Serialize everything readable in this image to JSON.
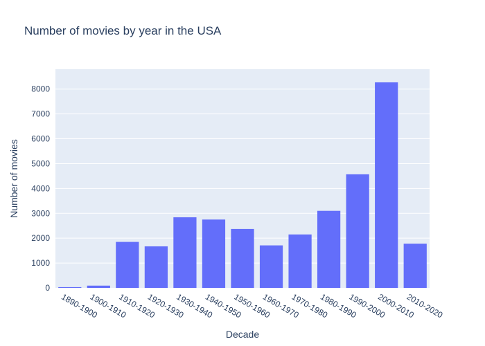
{
  "chart_data": {
    "type": "bar",
    "title": "Number of movies by year in the USA",
    "xlabel": "Decade",
    "ylabel": "Number of movies",
    "categories": [
      "1890-1900",
      "1900-1910",
      "1910-1920",
      "1920-1930",
      "1930-1940",
      "1940-1950",
      "1950-1960",
      "1960-1970",
      "1970-1980",
      "1980-1990",
      "1990-2000",
      "2000-2010",
      "2010-2020"
    ],
    "values": [
      30,
      90,
      1850,
      1670,
      2840,
      2750,
      2370,
      1710,
      2150,
      3100,
      4570,
      8270,
      1780
    ],
    "ylim": [
      0,
      8800
    ],
    "yticks": [
      0,
      1000,
      2000,
      3000,
      4000,
      5000,
      6000,
      7000,
      8000
    ],
    "grid": true,
    "colors": {
      "bar": "#636efa",
      "plot_background": "#e5ecf6",
      "gridline": "#ffffff",
      "text": "#2a3f5f"
    }
  }
}
